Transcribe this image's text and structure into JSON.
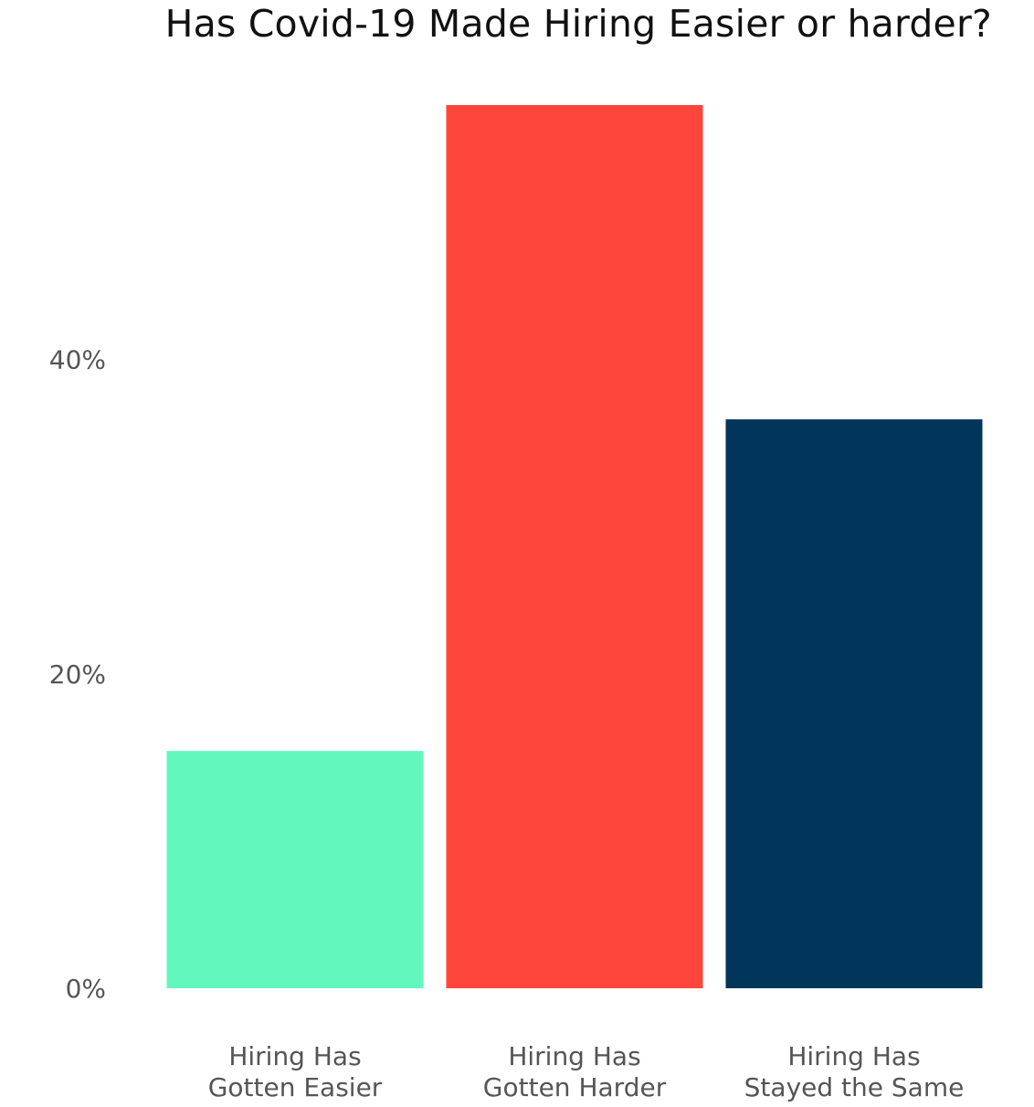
{
  "chart_data": {
    "type": "bar",
    "title": "Has Covid-19 Made Hiring Easier or harder?",
    "categories": [
      "Hiring Has Gotten Easier",
      "Hiring Has Gotten Harder",
      "Hiring Has Stayed the Same"
    ],
    "category_lines": [
      [
        "Hiring Has",
        "Gotten Easier"
      ],
      [
        "Hiring Has",
        "Gotten Harder"
      ],
      [
        "Hiring Has",
        "Stayed the Same"
      ]
    ],
    "values": [
      15.1,
      56.2,
      36.2
    ],
    "colors": [
      "#62f8bd",
      "#ff463c",
      "#02355a"
    ],
    "y_ticks": [
      0,
      20,
      40
    ],
    "y_tick_labels": [
      "0%",
      "20%",
      "40%"
    ],
    "ylim": [
      0,
      56.2
    ],
    "xlabel": "",
    "ylabel": "",
    "grid": false,
    "legend": "none"
  }
}
